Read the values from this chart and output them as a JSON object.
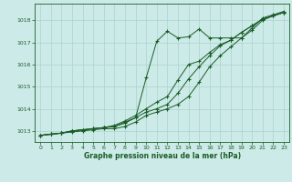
{
  "xlabel": "Graphe pression niveau de la mer (hPa)",
  "background_color": "#cceae7",
  "grid_color": "#aad4cc",
  "line_color": "#1a5c28",
  "ylim": [
    1012.5,
    1018.75
  ],
  "xlim": [
    -0.5,
    23.5
  ],
  "yticks": [
    1013,
    1014,
    1015,
    1016,
    1017,
    1018
  ],
  "xticks": [
    0,
    1,
    2,
    3,
    4,
    5,
    6,
    7,
    8,
    9,
    10,
    11,
    12,
    13,
    14,
    15,
    16,
    17,
    18,
    19,
    20,
    21,
    22,
    23
  ],
  "line_main": [
    1012.8,
    1012.85,
    1012.9,
    1013.0,
    1013.05,
    1013.1,
    1013.15,
    1013.2,
    1013.35,
    1013.6,
    1015.4,
    1017.05,
    1017.5,
    1017.2,
    1017.25,
    1017.6,
    1017.2,
    1017.2,
    1017.2,
    1017.2,
    1017.65,
    1018.1,
    1018.25,
    1018.4
  ],
  "line_low1": [
    1012.8,
    1012.85,
    1012.9,
    1012.95,
    1013.0,
    1013.05,
    1013.1,
    1013.1,
    1013.2,
    1013.4,
    1013.7,
    1013.85,
    1014.0,
    1014.2,
    1014.55,
    1015.2,
    1015.9,
    1016.4,
    1016.8,
    1017.2,
    1017.55,
    1018.0,
    1018.2,
    1018.35
  ],
  "line_low2": [
    1012.8,
    1012.85,
    1012.9,
    1013.0,
    1013.05,
    1013.1,
    1013.15,
    1013.2,
    1013.4,
    1013.6,
    1013.85,
    1014.0,
    1014.2,
    1014.7,
    1015.35,
    1015.9,
    1016.4,
    1016.85,
    1017.1,
    1017.45,
    1017.75,
    1018.05,
    1018.2,
    1018.35
  ],
  "line_low3": [
    1012.8,
    1012.85,
    1012.9,
    1013.0,
    1013.05,
    1013.1,
    1013.15,
    1013.25,
    1013.45,
    1013.7,
    1014.0,
    1014.3,
    1014.55,
    1015.3,
    1016.0,
    1016.15,
    1016.55,
    1016.9,
    1017.1,
    1017.45,
    1017.75,
    1018.05,
    1018.2,
    1018.35
  ]
}
